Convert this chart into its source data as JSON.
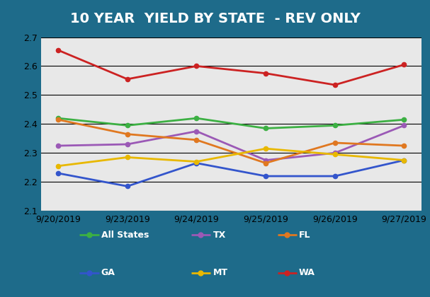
{
  "title": "10 YEAR  YIELD BY STATE  - REV ONLY",
  "x_labels": [
    "9/20/2019",
    "9/23/2019",
    "9/24/2019",
    "9/25/2019",
    "9/26/2019",
    "9/27/2019"
  ],
  "ylim": [
    2.1,
    2.7
  ],
  "yticks": [
    2.1,
    2.2,
    2.3,
    2.4,
    2.5,
    2.6,
    2.7
  ],
  "series": {
    "All States": {
      "values": [
        2.42,
        2.395,
        2.42,
        2.385,
        2.395,
        2.415
      ],
      "color": "#3CB043",
      "marker": "o",
      "linewidth": 2.0
    },
    "TX": {
      "values": [
        2.325,
        2.33,
        2.375,
        2.275,
        2.3,
        2.395
      ],
      "color": "#9B59B6",
      "marker": "o",
      "linewidth": 2.0
    },
    "FL": {
      "values": [
        2.415,
        2.365,
        2.345,
        2.265,
        2.335,
        2.325
      ],
      "color": "#E07820",
      "marker": "o",
      "linewidth": 2.0
    },
    "GA": {
      "values": [
        2.23,
        2.185,
        2.265,
        2.22,
        2.22,
        2.275
      ],
      "color": "#3355CC",
      "marker": "o",
      "linewidth": 2.0
    },
    "MT": {
      "values": [
        2.255,
        2.285,
        2.27,
        2.315,
        2.295,
        2.275
      ],
      "color": "#E8B800",
      "marker": "o",
      "linewidth": 2.0
    },
    "WA": {
      "values": [
        2.655,
        2.555,
        2.6,
        2.575,
        2.535,
        2.605
      ],
      "color": "#CC2222",
      "marker": "o",
      "linewidth": 2.0
    }
  },
  "legend_order": [
    "All States",
    "TX",
    "FL",
    "GA",
    "MT",
    "WA"
  ],
  "title_color": "#FFFFFF",
  "title_bg_color": "#1E6B8A",
  "plot_bg_color": "#E8E8E8",
  "outer_bg_color": "#1E6B8A",
  "grid_color": "#000000",
  "axis_label_color": "#000000",
  "title_fontsize": 14,
  "tick_fontsize": 9,
  "legend_fontsize": 9
}
